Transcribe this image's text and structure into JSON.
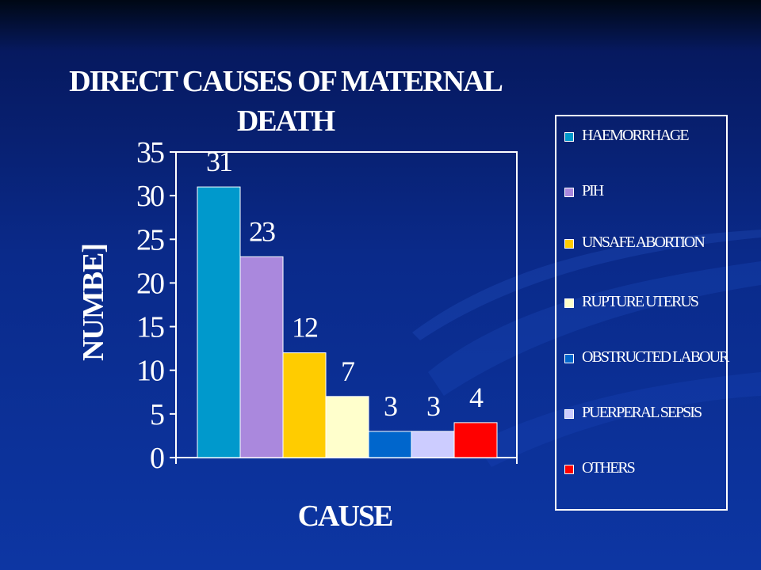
{
  "chart_data": {
    "type": "bar",
    "title": "DIRECT CAUSES OF MATERNAL DEATH",
    "xlabel": "CAUSE",
    "ylabel": "NUMBE]",
    "ylim": [
      0,
      35
    ],
    "yticks": [
      0,
      5,
      10,
      15,
      20,
      25,
      30,
      35
    ],
    "grid": false,
    "legend_position": "right",
    "categories": [
      "HAEMORRHAGE",
      "PIH",
      "UNSAFE ABORTION",
      "RUPTURE UTERUS",
      "OBSTRUCTED LABOUR",
      "PUERPERAL SEPSIS",
      "OTHERS"
    ],
    "values": [
      31,
      23,
      12,
      7,
      3,
      3,
      4
    ],
    "colors": [
      "#0099cc",
      "#aa88dd",
      "#ffcc00",
      "#ffffcc",
      "#0066cc",
      "#ccccff",
      "#ff0000"
    ]
  },
  "legend": {
    "entries": [
      {
        "label": "HAEMORRHAGE",
        "color": "#0099cc"
      },
      {
        "label": "PIH",
        "color": "#aa88dd"
      },
      {
        "label": "UNSAFE ABORTION",
        "color": "#ffcc00"
      },
      {
        "label": "RUPTURE UTERUS",
        "color": "#ffffcc"
      },
      {
        "label": "OBSTRUCTED LABOUR",
        "color": "#0066cc"
      },
      {
        "label": "PUERPERAL SEPSIS",
        "color": "#ccccff"
      },
      {
        "label": "OTHERS",
        "color": "#ff0000"
      }
    ]
  }
}
